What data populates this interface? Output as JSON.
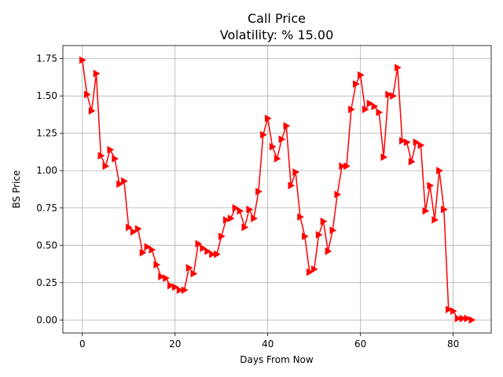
{
  "chart_data": {
    "type": "line",
    "title": "Call Price",
    "subtitle": "Volatility: % 15.00",
    "xlabel": "Days From Now",
    "ylabel": "BS Price",
    "xlim": [
      -4.2,
      88.2
    ],
    "ylim": [
      -0.0875,
      1.8375
    ],
    "xticks": [
      0,
      20,
      40,
      60,
      80
    ],
    "yticks": [
      0.0,
      0.25,
      0.5,
      0.75,
      1.0,
      1.25,
      1.5,
      1.75
    ],
    "xtick_labels": [
      "0",
      "20",
      "40",
      "60",
      "80"
    ],
    "ytick_labels": [
      "0.00",
      "0.25",
      "0.50",
      "0.75",
      "1.00",
      "1.25",
      "1.50",
      "1.75"
    ],
    "grid": true,
    "line_color": "#ff0000",
    "marker": "triangle-right",
    "series": [
      {
        "x": [
          0,
          1,
          2,
          3,
          4,
          5,
          6,
          7,
          8,
          9,
          10,
          11,
          12,
          13,
          14,
          15,
          16,
          17,
          18,
          19,
          20,
          21,
          22,
          23,
          24,
          25,
          26,
          27,
          28,
          29,
          30,
          31,
          32,
          33,
          34,
          35,
          36,
          37,
          38,
          39,
          40,
          41,
          42,
          43,
          44,
          45,
          46,
          47,
          48,
          49,
          50,
          51,
          52,
          53,
          54,
          55,
          56,
          57,
          58,
          59,
          60,
          61,
          62,
          63,
          64,
          65,
          66,
          67,
          68,
          69,
          70,
          71,
          72,
          73,
          74,
          75,
          76,
          77,
          78,
          79,
          80,
          81,
          82,
          83,
          84
        ],
        "values": [
          1.74,
          1.51,
          1.4,
          1.65,
          1.1,
          1.03,
          1.14,
          1.08,
          0.91,
          0.93,
          0.62,
          0.59,
          0.61,
          0.45,
          0.49,
          0.47,
          0.37,
          0.29,
          0.28,
          0.23,
          0.22,
          0.2,
          0.2,
          0.35,
          0.31,
          0.51,
          0.48,
          0.46,
          0.44,
          0.44,
          0.56,
          0.67,
          0.68,
          0.75,
          0.73,
          0.62,
          0.74,
          0.68,
          0.86,
          1.24,
          1.35,
          1.16,
          1.08,
          1.21,
          1.3,
          0.9,
          0.99,
          0.69,
          0.56,
          0.32,
          0.34,
          0.57,
          0.66,
          0.46,
          0.6,
          0.84,
          1.03,
          1.03,
          1.41,
          1.58,
          1.64,
          1.41,
          1.45,
          1.43,
          1.39,
          1.09,
          1.51,
          1.5,
          1.69,
          1.2,
          1.19,
          1.06,
          1.19,
          1.17,
          0.73,
          0.9,
          0.67,
          1.0,
          0.74,
          0.07,
          0.06,
          0.01,
          0.01,
          0.01,
          0.0
        ]
      }
    ]
  }
}
